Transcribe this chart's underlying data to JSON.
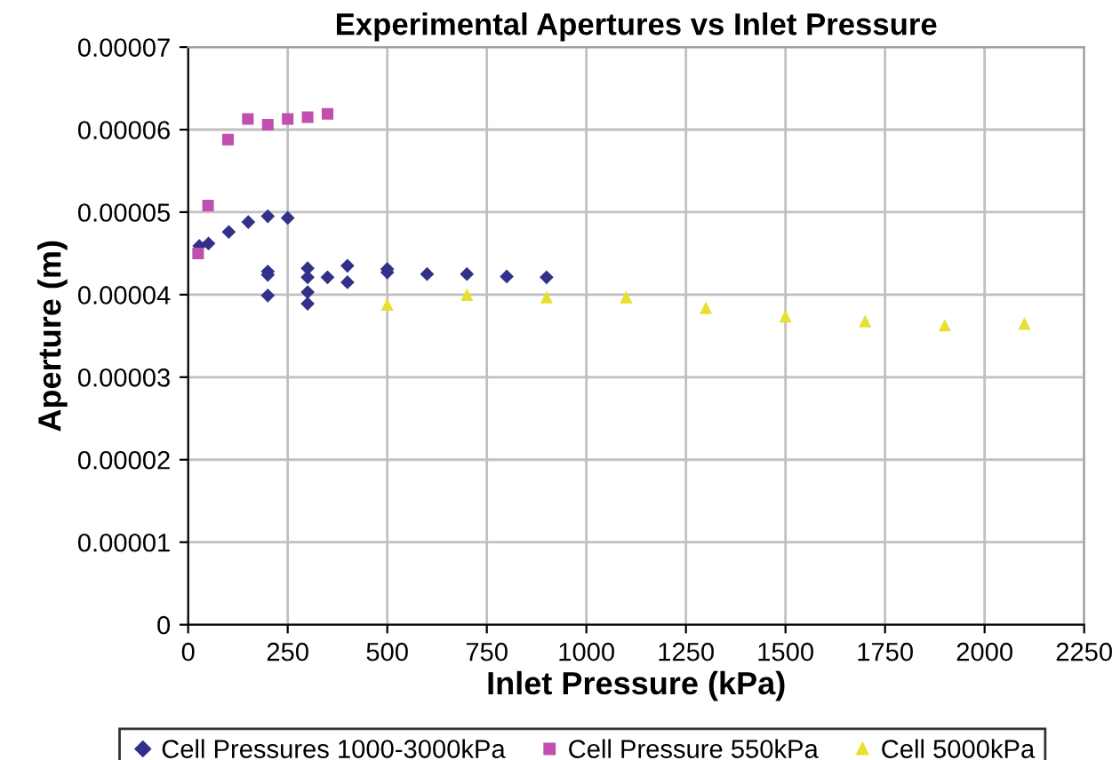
{
  "chart_data": {
    "type": "scatter",
    "title": "Experimental Apertures vs Inlet Pressure",
    "xlabel": "Inlet Pressure (kPa)",
    "ylabel": "Aperture (m)",
    "xlim": [
      0,
      2250
    ],
    "xticks": [
      0,
      250,
      500,
      750,
      1000,
      1250,
      1500,
      1750,
      2000,
      2250
    ],
    "ylim": [
      0,
      7e-05
    ],
    "yticks": [
      0,
      {
        "value": 1e-05,
        "label": "0.00001"
      },
      {
        "value": 2e-05,
        "label": "0.00002"
      },
      {
        "value": 3e-05,
        "label": "0.00003"
      },
      {
        "value": 4e-05,
        "label": "0.00004"
      },
      {
        "value": 5e-05,
        "label": "0.00005"
      },
      {
        "value": 6e-05,
        "label": "0.00006"
      },
      {
        "value": 7e-05,
        "label": "0.00007"
      }
    ],
    "grid": true,
    "legend": "bottom",
    "series": [
      {
        "name": "Cell Pressures 1000-3000kPa",
        "color": "#33308a",
        "marker": "diamond",
        "x": [
          28,
          51,
          102,
          151,
          200,
          250,
          200,
          200,
          200,
          300,
          300,
          300,
          300,
          350,
          400,
          400,
          500,
          500,
          600,
          700,
          800,
          900
        ],
        "values": [
          4.59e-05,
          4.62e-05,
          4.76e-05,
          4.88e-05,
          4.95e-05,
          4.93e-05,
          4.28e-05,
          4.24e-05,
          3.99e-05,
          4.32e-05,
          4.21e-05,
          4.03e-05,
          3.89e-05,
          4.21e-05,
          4.35e-05,
          4.15e-05,
          4.31e-05,
          4.27e-05,
          4.25e-05,
          4.25e-05,
          4.22e-05,
          4.21e-05
        ]
      },
      {
        "name": "Cell Pressure 550kPa",
        "color": "#c04fb0",
        "marker": "square",
        "x": [
          25,
          50,
          100,
          150,
          200,
          250,
          300,
          350
        ],
        "values": [
          4.5e-05,
          5.08e-05,
          5.88e-05,
          6.13e-05,
          6.06e-05,
          6.13e-05,
          6.15e-05,
          6.19e-05
        ]
      },
      {
        "name": "Cell 5000kPa",
        "color": "#e8e030",
        "marker": "triangle",
        "x": [
          500,
          700,
          900,
          1100,
          1300,
          1500,
          1700,
          1900,
          2100
        ],
        "values": [
          3.88e-05,
          4e-05,
          3.97e-05,
          3.97e-05,
          3.84e-05,
          3.74e-05,
          3.68e-05,
          3.63e-05,
          3.65e-05
        ]
      }
    ]
  }
}
